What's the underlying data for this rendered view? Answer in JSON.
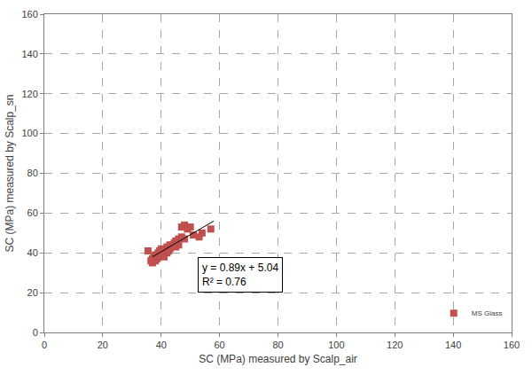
{
  "chart_data": {
    "type": "scatter",
    "x_label": "SC (MPa) measured by Scalp_air",
    "y_label": "SC (MPa) measured by Scalp_sn",
    "xlim": [
      0,
      160
    ],
    "ylim": [
      0,
      160
    ],
    "xticks": [
      0,
      20,
      40,
      60,
      80,
      100,
      120,
      140,
      160
    ],
    "yticks": [
      0,
      20,
      40,
      60,
      80,
      100,
      120,
      140,
      160
    ],
    "grid": true,
    "legend": "lower right",
    "annotation": [
      "y = 0.89x + 5.04",
      "R² = 0.76"
    ],
    "series": [
      {
        "name": "MS Glass",
        "type": "scatter",
        "color": "#c0504d",
        "marker": "square",
        "x": [
          35.5,
          36.5,
          37,
          37,
          37.5,
          38,
          38,
          38.5,
          39,
          39,
          39.5,
          40,
          40,
          40.5,
          41,
          41,
          41.5,
          42,
          42,
          42.5,
          43,
          43,
          43.5,
          44,
          44.5,
          45,
          45,
          46,
          46,
          47,
          47,
          48,
          48,
          49,
          50,
          51,
          53,
          54,
          57
        ],
        "values": [
          41,
          36,
          35,
          37,
          38,
          36,
          39,
          37,
          40,
          38,
          41,
          39,
          42,
          40,
          38,
          41,
          42,
          40,
          43,
          41,
          42,
          44,
          43,
          44,
          45,
          46,
          43,
          47,
          44,
          48,
          53,
          54,
          47,
          52,
          53,
          49,
          48,
          50,
          52
        ]
      },
      {
        "type": "line",
        "color": "#000000",
        "line_style": "solid",
        "x": [
          37,
          58
        ],
        "values": [
          38,
          56
        ]
      }
    ]
  }
}
